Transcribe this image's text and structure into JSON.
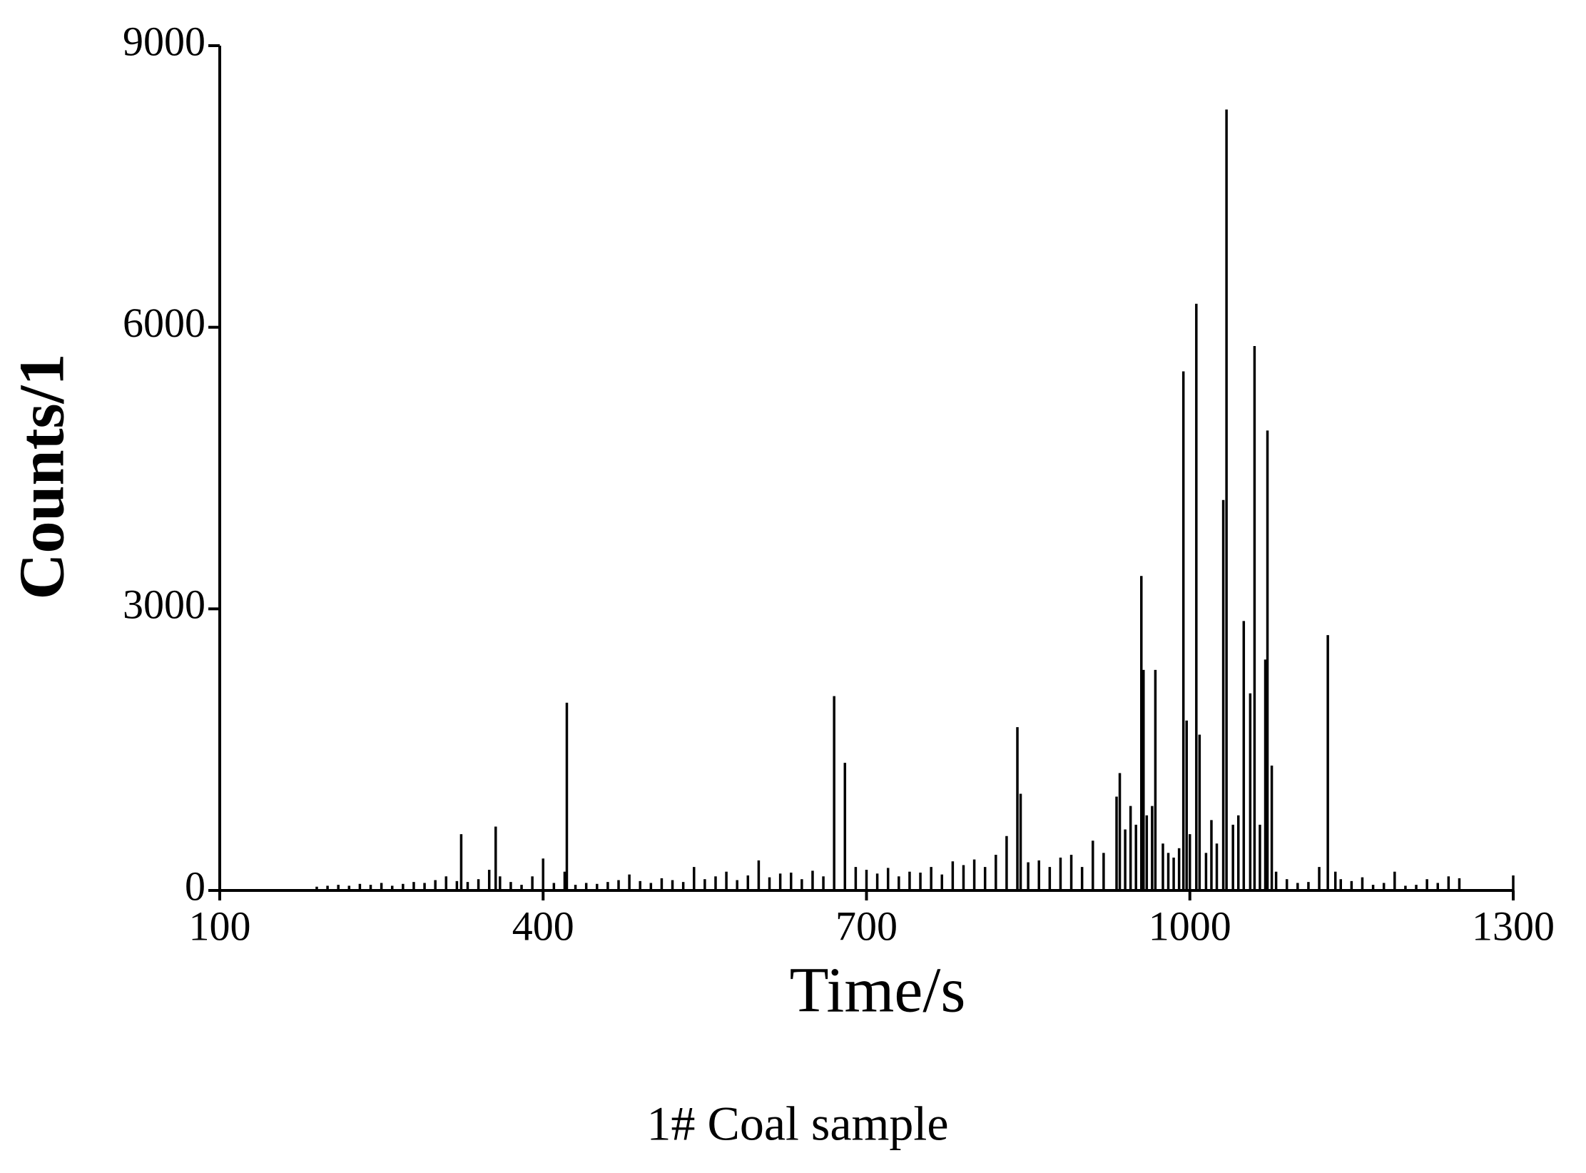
{
  "chart_data": {
    "type": "spike",
    "xlabel": "Time/s",
    "ylabel": "Counts/1",
    "caption": "1# Coal sample",
    "color": "#000000",
    "xlim": [
      100,
      1300
    ],
    "xticks": [
      100,
      400,
      700,
      1000,
      1300
    ],
    "ylim": [
      0,
      9000
    ],
    "yticks": [
      0,
      3000,
      6000,
      9000
    ],
    "x": [
      190,
      200,
      210,
      220,
      230,
      240,
      250,
      260,
      270,
      280,
      290,
      300,
      310,
      320,
      324,
      330,
      340,
      350,
      356,
      360,
      370,
      380,
      390,
      400,
      410,
      420,
      422,
      430,
      440,
      450,
      460,
      470,
      480,
      490,
      500,
      510,
      520,
      530,
      540,
      550,
      560,
      570,
      580,
      590,
      600,
      610,
      620,
      630,
      640,
      650,
      660,
      670,
      680,
      690,
      700,
      710,
      720,
      730,
      740,
      750,
      760,
      770,
      780,
      790,
      800,
      810,
      820,
      830,
      840,
      843,
      850,
      860,
      870,
      880,
      890,
      900,
      910,
      920,
      932,
      935,
      940,
      945,
      950,
      955,
      957,
      960,
      965,
      968,
      975,
      980,
      985,
      990,
      994,
      997,
      1000,
      1006,
      1009,
      1015,
      1020,
      1025,
      1031,
      1034,
      1040,
      1045,
      1050,
      1056,
      1060,
      1065,
      1070,
      1072,
      1076,
      1080,
      1090,
      1100,
      1110,
      1120,
      1128,
      1135,
      1140,
      1150,
      1160,
      1170,
      1180,
      1190,
      1200,
      1210,
      1220,
      1230,
      1240,
      1250,
      1300
    ],
    "values": [
      40,
      50,
      60,
      50,
      70,
      60,
      80,
      50,
      70,
      90,
      80,
      110,
      150,
      100,
      600,
      90,
      120,
      220,
      680,
      150,
      90,
      60,
      150,
      340,
      80,
      200,
      2000,
      60,
      80,
      70,
      90,
      110,
      170,
      100,
      80,
      130,
      110,
      90,
      250,
      120,
      150,
      200,
      110,
      160,
      320,
      140,
      180,
      190,
      120,
      210,
      150,
      2070,
      1360,
      250,
      220,
      180,
      240,
      150,
      200,
      190,
      250,
      170,
      310,
      270,
      330,
      250,
      380,
      580,
      1740,
      1030,
      300,
      320,
      250,
      350,
      380,
      250,
      530,
      400,
      1000,
      1250,
      650,
      900,
      700,
      3350,
      2350,
      800,
      900,
      2350,
      500,
      400,
      350,
      450,
      5530,
      1810,
      600,
      6250,
      1660,
      400,
      750,
      500,
      4160,
      8320,
      700,
      800,
      2870,
      2100,
      5800,
      700,
      2460,
      4900,
      1330,
      200,
      120,
      80,
      90,
      250,
      2720,
      200,
      120,
      100,
      140,
      60,
      80,
      200,
      50,
      60,
      120,
      80,
      150,
      130,
      160
    ]
  }
}
